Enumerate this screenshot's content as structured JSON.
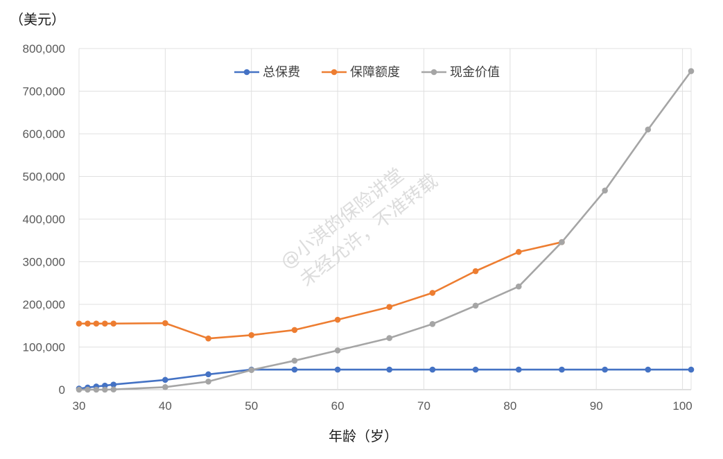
{
  "chart_data": {
    "type": "line",
    "unit_label": "（美元）",
    "xlabel": "年龄（岁）",
    "xlim": [
      30,
      101
    ],
    "ylim": [
      0,
      800000
    ],
    "x_ticks": [
      "30",
      "40",
      "50",
      "60",
      "70",
      "80",
      "90",
      "100"
    ],
    "y_ticks": [
      "0",
      "100,000",
      "200,000",
      "300,000",
      "400,000",
      "500,000",
      "600,000",
      "700,000",
      "800,000"
    ],
    "grid": true,
    "legend_position": "top-center",
    "watermark": [
      "@小淇的保险讲堂",
      "未经允许，不准转载"
    ],
    "series": [
      {
        "name": "总保费",
        "color": "#4472C4",
        "points": [
          [
            30,
            2500
          ],
          [
            31,
            5000
          ],
          [
            32,
            7500
          ],
          [
            33,
            9500
          ],
          [
            34,
            12000
          ],
          [
            40,
            23000
          ],
          [
            45,
            36000
          ],
          [
            50,
            47000
          ],
          [
            55,
            47000
          ],
          [
            60,
            47000
          ],
          [
            66,
            47000
          ],
          [
            71,
            47000
          ],
          [
            76,
            47000
          ],
          [
            81,
            47000
          ],
          [
            86,
            47000
          ],
          [
            91,
            47000
          ],
          [
            96,
            47000
          ],
          [
            101,
            47000
          ]
        ]
      },
      {
        "name": "保障额度",
        "color": "#ED7D31",
        "points": [
          [
            30,
            155000
          ],
          [
            31,
            155000
          ],
          [
            32,
            155000
          ],
          [
            33,
            155000
          ],
          [
            34,
            155000
          ],
          [
            40,
            156000
          ],
          [
            45,
            120000
          ],
          [
            50,
            128000
          ],
          [
            55,
            140000
          ],
          [
            60,
            164000
          ],
          [
            66,
            194000
          ],
          [
            71,
            227000
          ],
          [
            76,
            278000
          ],
          [
            81,
            323000
          ],
          [
            86,
            346000
          ]
        ]
      },
      {
        "name": "现金价值",
        "color": "#A5A5A5",
        "points": [
          [
            30,
            0
          ],
          [
            31,
            0
          ],
          [
            32,
            0
          ],
          [
            33,
            0
          ],
          [
            34,
            500
          ],
          [
            40,
            6000
          ],
          [
            45,
            19000
          ],
          [
            50,
            46000
          ],
          [
            55,
            68000
          ],
          [
            60,
            92000
          ],
          [
            66,
            121000
          ],
          [
            71,
            154000
          ],
          [
            76,
            197000
          ],
          [
            81,
            242000
          ],
          [
            86,
            346000
          ],
          [
            91,
            467000
          ],
          [
            96,
            610000
          ],
          [
            101,
            747000
          ]
        ]
      }
    ]
  }
}
